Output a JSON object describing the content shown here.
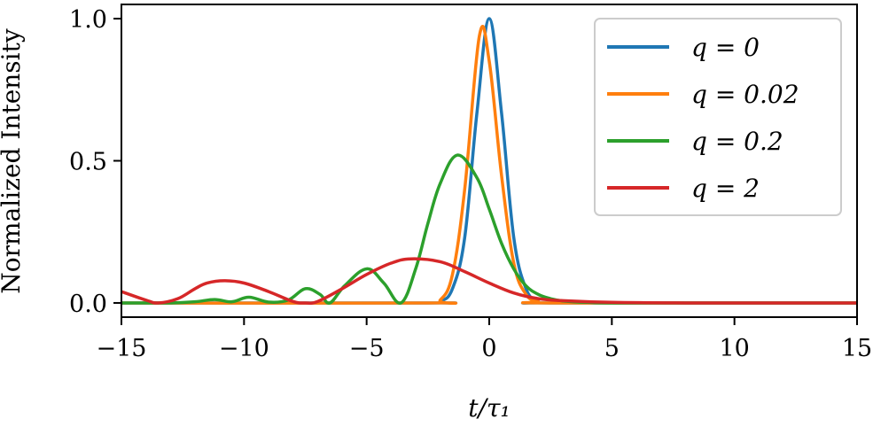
{
  "chart_data": {
    "type": "line",
    "xlabel": "t/τ₁",
    "ylabel": "Normalized Intensity",
    "xlim": [
      -15,
      15
    ],
    "ylim": [
      -0.05,
      1.05
    ],
    "xticks": [
      -15,
      -10,
      -5,
      0,
      5,
      10,
      15
    ],
    "xtick_labels": [
      "−15",
      "−10",
      "−5",
      "0",
      "5",
      "10",
      "15"
    ],
    "yticks": [
      0.0,
      0.5,
      1.0
    ],
    "ytick_labels": [
      "0.0",
      "0.5",
      "1.0"
    ],
    "grid": false,
    "legend_position": "top-right",
    "series": [
      {
        "name": "q = 0",
        "color": "#1f77b4",
        "x": [
          -15,
          -2.5,
          -2.0,
          -1.5,
          -1.0,
          -0.5,
          0.0,
          0.5,
          1.0,
          1.5,
          2.0,
          2.5,
          15
        ],
        "y": [
          0.0,
          0.0,
          0.005,
          0.05,
          0.23,
          0.67,
          1.0,
          0.67,
          0.23,
          0.05,
          0.005,
          0.0,
          0.0
        ]
      },
      {
        "name": "q = 0.02",
        "color": "#ff7f0e",
        "x": [
          -15,
          -2.5,
          -2.0,
          -1.5,
          -1.0,
          -0.4,
          0.0,
          0.5,
          1.0,
          1.5,
          2.0,
          2.5,
          15
        ],
        "y": [
          0.0,
          0.0,
          0.01,
          0.1,
          0.4,
          0.94,
          0.85,
          0.45,
          0.14,
          0.03,
          0.005,
          0.0,
          0.0
        ]
      },
      {
        "name": "q = 0.2",
        "color": "#2ca02c",
        "x": [
          -15,
          -13,
          -12,
          -11.2,
          -10.5,
          -9.8,
          -9.0,
          -8.2,
          -7.5,
          -6.9,
          -6.5,
          -5.9,
          -5.0,
          -4.3,
          -3.6,
          -3.0,
          -2.5,
          -2.0,
          -1.3,
          -0.5,
          0.0,
          0.5,
          1.0,
          1.5,
          2.0,
          2.5,
          3.0,
          4.0,
          6.0,
          15
        ],
        "y": [
          0.0,
          0.0,
          0.004,
          0.012,
          0.004,
          0.02,
          0.003,
          0.01,
          0.05,
          0.03,
          0.0,
          0.06,
          0.12,
          0.07,
          0.0,
          0.12,
          0.28,
          0.42,
          0.52,
          0.44,
          0.33,
          0.21,
          0.12,
          0.06,
          0.03,
          0.015,
          0.007,
          0.002,
          0.0,
          0.0
        ]
      },
      {
        "name": "q = 2",
        "color": "#d62728",
        "x": [
          -15,
          -14,
          -13.5,
          -12.7,
          -12,
          -11.5,
          -10.8,
          -10,
          -9,
          -8,
          -7.5,
          -7,
          -6,
          -5,
          -4,
          -3.2,
          -2,
          -1,
          0,
          1,
          2,
          3,
          5,
          8,
          15
        ],
        "y": [
          0.04,
          0.01,
          0.0,
          0.015,
          0.05,
          0.07,
          0.078,
          0.07,
          0.04,
          0.005,
          0.0,
          0.005,
          0.05,
          0.1,
          0.14,
          0.155,
          0.145,
          0.11,
          0.07,
          0.035,
          0.015,
          0.008,
          0.002,
          0.0,
          0.0
        ]
      }
    ],
    "legend": [
      "q = 0",
      "q = 0.02",
      "q = 0.2",
      "q = 2"
    ]
  }
}
